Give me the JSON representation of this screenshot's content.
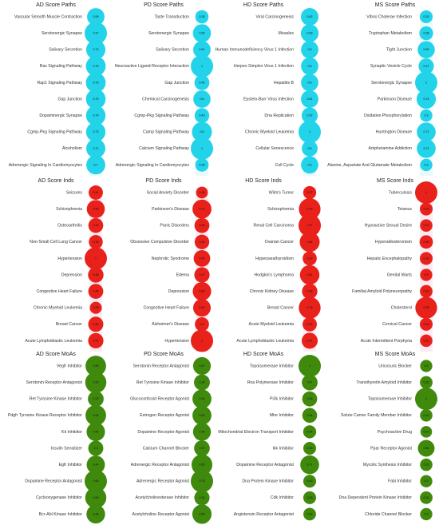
{
  "chart_data": [
    {
      "type": "bubble",
      "title": "AD Score Paths",
      "color": "#22d3ea",
      "categories": [
        "Vascular Smooth Muscle Contraction",
        "Serotonergic Synapse",
        "Salivary Secretion",
        "Ras Signaling Pathway",
        "Rap1 Signaling Pathway",
        "Gap Junction",
        "Dopaminergic Synapse",
        "Cgmp-Pkg Signaling Pathway",
        "Alcoholism",
        "Adrenergic Signaling In Cardiomyocytes"
      ],
      "values": [
        0.59,
        0.97,
        0.72,
        0.76,
        0.76,
        0.75,
        0.74,
        0.73,
        0.71,
        0.7
      ]
    },
    {
      "type": "bubble",
      "title": "PD Score Paths",
      "color": "#22d3ea",
      "categories": [
        "Taste Transduction",
        "Serotonergic Synapse",
        "Salivary Secretion",
        "Neuroactive Ligand-Receptor Interaction",
        "Gap Junction",
        "Chemical Carcinogenesis",
        "Cgmp-Pkg Signaling Pathway",
        "Camp Signaling Pathway",
        "Calcium Signaling Pathway",
        "Adrenergic Signaling In Cardiomyocytes"
      ],
      "values": [
        0.35,
        0.65,
        0.61,
        1,
        0.45,
        0.6,
        0.43,
        0.8,
        1,
        0.36
      ]
    },
    {
      "type": "bubble",
      "title": "HD Score Paths",
      "color": "#22d3ea",
      "categories": [
        "Viral Carcinogenesis",
        "Measles",
        "Human Immunodeficiency Virus 1 Infection",
        "Herpes Simplex Virus 1 Infection",
        "Hepatitis B",
        "Epstein-Barr Virus Infection",
        "Dna Replication",
        "Chronic Myeloid Leukemia",
        "Cellular Senescence",
        "Cell Cycle"
      ],
      "values": [
        0.62,
        0.63,
        0.6,
        0.6,
        0.6,
        0.61,
        0.52,
        1,
        0.5,
        0.6
      ]
    },
    {
      "type": "bubble",
      "title": "MS Score Paths",
      "color": "#22d3ea",
      "categories": [
        "Vibrio Cholerae Infection",
        "Tryptophan Metabolism",
        "Tight Junction",
        "Synaptic Vesicle Cycle",
        "Serotonergic Synapse",
        "Parkinson Disease",
        "Oxidative Phosphorylation",
        "Huntington Disease",
        "Amphetamine Addiction",
        "Alanine, Aspartate And Glutamate Metabolism"
      ],
      "values": [
        0.33,
        0.38,
        0.59,
        0.47,
        1,
        0.74,
        0.3,
        0.71,
        0.71,
        0.3
      ]
    },
    {
      "type": "bubble",
      "title": "AD Score Inds",
      "color": "#e8211b",
      "categories": [
        "Seizures",
        "Schizophrenia",
        "Osteoarthritis",
        "Non-Small Cell Lung Cancer",
        "Hypertension",
        "Depression",
        "Congestive Heart Failure",
        "Chronic Myeloid Leukemia",
        "Breast Cancer",
        "Acute Lymphoblastic Leukemia"
      ],
      "values": [
        0.41,
        0.65,
        0.44,
        0.39,
        1,
        0.48,
        0.45,
        0.29,
        0.46,
        0.47
      ]
    },
    {
      "type": "bubble",
      "title": "PD Score Inds",
      "color": "#e8211b",
      "categories": [
        "Social Anxiety Disorder",
        "Parkinson's Disease",
        "Panic Disorders",
        "Obsessive Compulsive Disorder",
        "Nephrotic Syndrome",
        "Edema",
        "Depression",
        "Congestive Heart Failure",
        "Alzheimer's Disease",
        "Hypertension"
      ],
      "values": [
        0.28,
        0.72,
        0.45,
        0.43,
        0.55,
        0.47,
        0.68,
        0.62,
        0.4,
        1
      ]
    },
    {
      "type": "bubble",
      "title": "HD Score Inds",
      "color": "#e8211b",
      "categories": [
        "Wilm's Tumor",
        "Schizophrenia",
        "Renal Cell Carcinoma",
        "Ovarian Cancer",
        "Hyperparathyroidism",
        "Hodgkin's Lymphoma",
        "Chronic Kidney Disease",
        "Breast Cancer",
        "Acute Myeloid Leukemia",
        "Acute Lymphoblastic Leukemia"
      ],
      "values": [
        0.27,
        0.75,
        0.8,
        0.64,
        0.32,
        0.61,
        0.38,
        0.76,
        0.33,
        0.41
      ]
    },
    {
      "type": "bubble",
      "title": "MS Score Inds",
      "color": "#e8211b",
      "categories": [
        "Tuberculosis",
        "Tetanus",
        "Hypoactive Sexual Desire",
        "Hyperaldosteronism",
        "Hepatic Encephalopathy",
        "Genital Warts",
        "Familial Amyloid Polyneuropathy",
        "Cholesterol",
        "Cervical Cancer",
        "Acute Intermittent Porphyria"
      ],
      "values": [
        1,
        0.33,
        0.31,
        0.36,
        0.33,
        0.3,
        0.32,
        0.95,
        0.33,
        0.31
      ]
    },
    {
      "type": "bubble",
      "title": "AD Score MoAs",
      "color": "#3f8a0c",
      "categories": [
        "Vegfr Inhibitor",
        "Serotonin Receptor Antagonist",
        "Ret Tyrosine Kinase Inhibitor",
        "Pdgfr Tyrosine Kinase Receptor Inhibitor",
        "Kit Inhibitor",
        "Insulin Sensitizer",
        "Egfr Inhibitor",
        "Dopamine Receptor Antagonist",
        "Cyclooxygenase Inhibitor",
        "Bcr-Abl Kinase Inhibitor"
      ],
      "values": [
        0.56,
        0.59,
        0.33,
        0.56,
        0.45,
        0.3,
        0.44,
        0.66,
        0.59,
        0.46
      ]
    },
    {
      "type": "bubble",
      "title": "PD Score MoAs",
      "color": "#3f8a0c",
      "categories": [
        "Serotonin Receptor Antagonist",
        "Ret Tyrosine Kinase Inhibitor",
        "Glucocorticoid Receptor Agonist",
        "Estrogen Receptor Agonist",
        "Dopamine Receptor Agonist",
        "Calcium Channel Blocker",
        "Adrenergic Receptor Antagonist",
        "Adrenergic Receptor Agonist",
        "Acetylcholinesterase Inhibitor",
        "Acetylcholine Receptor Agonist"
      ],
      "values": [
        0.47,
        0.38,
        0.54,
        0.54,
        0.48,
        0.37,
        0.65,
        0.75,
        0.35,
        0.56
      ]
    },
    {
      "type": "bubble",
      "title": "HD Score MoAs",
      "color": "#3f8a0c",
      "categories": [
        "Topoisomerase Inhibitor",
        "Rna Polymerase Inhibitor",
        "Pi3k Inhibitor",
        "Mtor Inhibitor",
        "Mitochondrial Electron Transport Inhibitor",
        "Ikk Inhibitor",
        "Dopamine Receptor Antagonist",
        "Dna Protein Kinase Inhibitor",
        "Cdk Inhibitor",
        "Angiotensin Receptor Antagonist"
      ],
      "values": [
        1,
        0.5,
        0.45,
        0.44,
        0.34,
        0.33,
        0.71,
        0.33,
        0.33,
        0.32
      ]
    },
    {
      "type": "bubble",
      "title": "MS Score MoAs",
      "color": "#3f8a0c",
      "categories": [
        "Uricosuric Blocker",
        "Transthyretin Amyloid Inhibitor",
        "Topoisomerase Inhibitor",
        "Solute Carrier Family Member Inhibitor",
        "Psychoactive Drug",
        "Ppar Receptor Agonist",
        "Mycolic Synthesis Inhibitor",
        "Fabi Inhibitor",
        "Dna Dependent Protein Kinase Inhibitor",
        "Chloride Channel Blocker"
      ],
      "values": [
        0.3,
        0.32,
        1,
        0.31,
        0.27,
        0.56,
        0.31,
        0.3,
        0.32,
        0.3
      ]
    }
  ]
}
